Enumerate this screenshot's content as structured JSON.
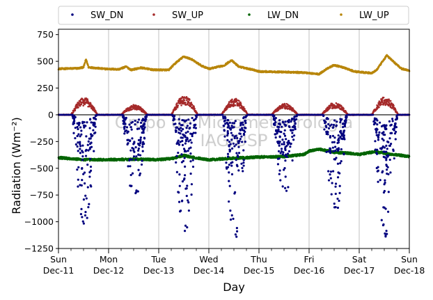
{
  "chart_data": {
    "type": "scatter",
    "title": "",
    "xlabel": "Day",
    "ylabel": "Radiation (Wm⁻²)",
    "ylim": [
      -1250,
      800
    ],
    "yticks": [
      -1250,
      -1000,
      -750,
      -500,
      -250,
      0,
      250,
      500,
      750
    ],
    "xlim_days": [
      0,
      7
    ],
    "xticks": [
      {
        "day": "Sun",
        "date": "Dec-11"
      },
      {
        "day": "Mon",
        "date": "Dec-12"
      },
      {
        "day": "Tue",
        "date": "Dec-13"
      },
      {
        "day": "Wed",
        "date": "Dec-14"
      },
      {
        "day": "Thu",
        "date": "Dec-15"
      },
      {
        "day": "Fri",
        "date": "Dec-16"
      },
      {
        "day": "Sat",
        "date": "Dec-17"
      },
      {
        "day": "Sun",
        "date": "Dec-18"
      }
    ],
    "grid": "vertical-at-major-days",
    "zero_line": true,
    "legend_position": "top",
    "watermark": [
      "Grupo de Micrometeorologia",
      "IAG/USP"
    ],
    "series": [
      {
        "name": "SW_DN",
        "color": "#00007f",
        "daily_min": [
          -1040,
          -810,
          -1170,
          -1170,
          -770,
          -930,
          -1140
        ],
        "typical_daytime_range": [
          -600,
          -50
        ]
      },
      {
        "name": "SW_UP",
        "color": "#a52a2a",
        "daily_peak": [
          155,
          90,
          170,
          145,
          100,
          110,
          160
        ]
      },
      {
        "name": "LW_DN",
        "color": "#006400",
        "points": [
          [
            0.0,
            -400
          ],
          [
            0.5,
            -420
          ],
          [
            1.0,
            -420
          ],
          [
            1.5,
            -415
          ],
          [
            2.0,
            -420
          ],
          [
            2.3,
            -405
          ],
          [
            2.5,
            -380
          ],
          [
            2.7,
            -400
          ],
          [
            3.0,
            -420
          ],
          [
            3.5,
            -405
          ],
          [
            4.0,
            -395
          ],
          [
            4.5,
            -390
          ],
          [
            4.9,
            -370
          ],
          [
            5.0,
            -340
          ],
          [
            5.2,
            -320
          ],
          [
            5.5,
            -350
          ],
          [
            5.8,
            -360
          ],
          [
            6.0,
            -370
          ],
          [
            6.3,
            -345
          ],
          [
            6.6,
            -365
          ],
          [
            7.0,
            -390
          ]
        ]
      },
      {
        "name": "LW_UP",
        "color": "#b8860b",
        "points": [
          [
            0.0,
            430
          ],
          [
            0.4,
            435
          ],
          [
            0.5,
            445
          ],
          [
            0.55,
            520
          ],
          [
            0.6,
            445
          ],
          [
            0.9,
            430
          ],
          [
            1.2,
            425
          ],
          [
            1.35,
            450
          ],
          [
            1.45,
            420
          ],
          [
            1.65,
            440
          ],
          [
            1.9,
            420
          ],
          [
            2.2,
            420
          ],
          [
            2.35,
            490
          ],
          [
            2.5,
            545
          ],
          [
            2.65,
            520
          ],
          [
            2.85,
            460
          ],
          [
            3.0,
            430
          ],
          [
            3.3,
            460
          ],
          [
            3.45,
            510
          ],
          [
            3.6,
            450
          ],
          [
            3.9,
            420
          ],
          [
            4.0,
            405
          ],
          [
            4.5,
            400
          ],
          [
            4.9,
            395
          ],
          [
            5.0,
            390
          ],
          [
            5.2,
            380
          ],
          [
            5.35,
            430
          ],
          [
            5.5,
            465
          ],
          [
            5.7,
            440
          ],
          [
            5.9,
            405
          ],
          [
            6.0,
            400
          ],
          [
            6.25,
            390
          ],
          [
            6.35,
            420
          ],
          [
            6.55,
            555
          ],
          [
            6.7,
            490
          ],
          [
            6.85,
            430
          ],
          [
            7.0,
            415
          ]
        ]
      }
    ]
  }
}
